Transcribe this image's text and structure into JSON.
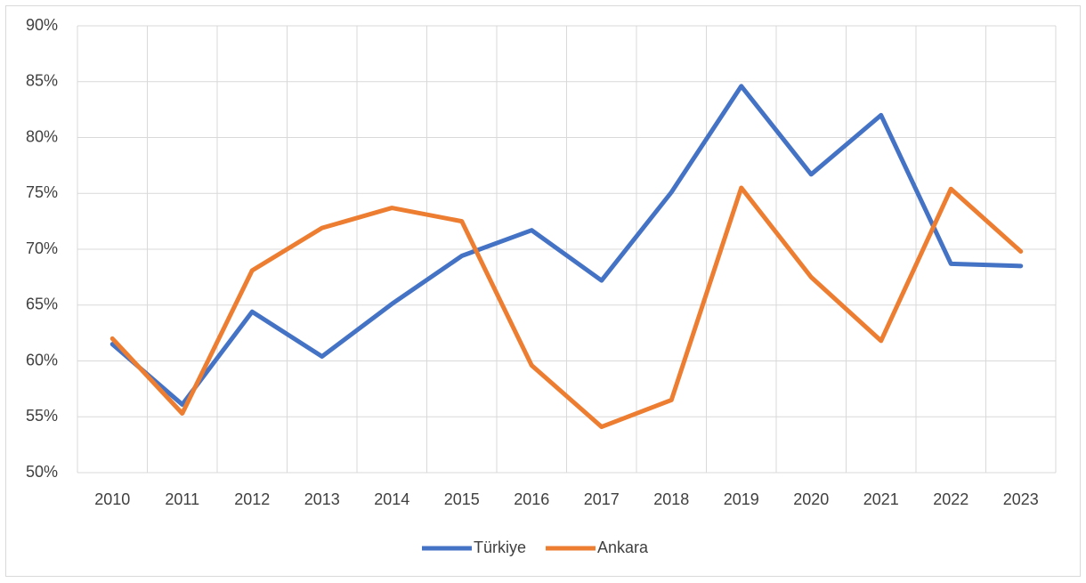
{
  "chart_data": {
    "type": "line",
    "categories": [
      "2010",
      "2011",
      "2012",
      "2013",
      "2014",
      "2015",
      "2016",
      "2017",
      "2018",
      "2019",
      "2020",
      "2021",
      "2022",
      "2023"
    ],
    "series": [
      {
        "name": "Türkiye",
        "color": "#4472c4",
        "values": [
          61.5,
          56.1,
          64.4,
          60.4,
          65.1,
          69.4,
          71.7,
          67.2,
          75.1,
          84.6,
          76.7,
          82.0,
          68.7,
          68.5
        ]
      },
      {
        "name": "Ankara",
        "color": "#ed7d31",
        "values": [
          62.0,
          55.3,
          68.1,
          71.9,
          73.7,
          72.5,
          59.6,
          54.1,
          56.5,
          75.5,
          67.5,
          61.8,
          75.4,
          69.8
        ]
      }
    ],
    "ylim": [
      50,
      90
    ],
    "yticks": [
      {
        "value": 50,
        "label": "50%"
      },
      {
        "value": 55,
        "label": "55%"
      },
      {
        "value": 60,
        "label": "60%"
      },
      {
        "value": 65,
        "label": "65%"
      },
      {
        "value": 70,
        "label": "70%"
      },
      {
        "value": 75,
        "label": "75%"
      },
      {
        "value": 80,
        "label": "80%"
      },
      {
        "value": 85,
        "label": "85%"
      },
      {
        "value": 90,
        "label": "90%"
      }
    ],
    "grid": true,
    "legend": "bottom"
  }
}
